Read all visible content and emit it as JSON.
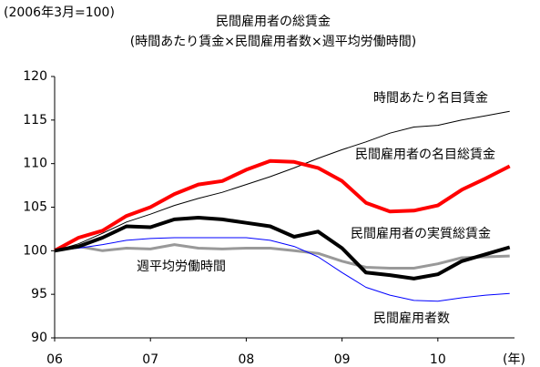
{
  "chart_data": {
    "type": "line",
    "note": "(2006年3月=100)",
    "title": "民間雇用者の総賃金",
    "subtitle": "(時間あたり賃金×民間雇用者数×週平均労働時間)",
    "x_unit": "(年)",
    "xlim": [
      2006,
      2010.8
    ],
    "xticks": [
      {
        "value": 2006,
        "label": "06"
      },
      {
        "value": 2007,
        "label": "07"
      },
      {
        "value": 2008,
        "label": "08"
      },
      {
        "value": 2009,
        "label": "09"
      },
      {
        "value": 2010,
        "label": "10"
      }
    ],
    "ylim": [
      90,
      120
    ],
    "yticks": [
      90,
      95,
      100,
      105,
      110,
      115,
      120
    ],
    "x": [
      2006,
      2006.25,
      2006.5,
      2006.75,
      2007,
      2007.25,
      2007.5,
      2007.75,
      2008,
      2008.25,
      2008.5,
      2008.75,
      2009,
      2009.25,
      2009.5,
      2009.75,
      2010,
      2010.25,
      2010.5,
      2010.75
    ],
    "series": [
      {
        "name": "時間あたり名目賃金",
        "color": "#000000",
        "values": [
          100,
          100.8,
          102,
          103.3,
          104.2,
          105.2,
          106,
          106.7,
          107.6,
          108.5,
          109.5,
          110.6,
          111.6,
          112.5,
          113.5,
          114.2,
          114.4,
          115,
          115.5,
          116
        ]
      },
      {
        "name": "民間雇用者の名目総賃金",
        "color": "#ff0000",
        "values": [
          100,
          101.5,
          102.3,
          104,
          105,
          106.5,
          107.6,
          108,
          109.3,
          110.3,
          110.2,
          109.5,
          108,
          105.5,
          104.5,
          104.6,
          105.2,
          107,
          108.3,
          109.7
        ]
      },
      {
        "name": "民間雇用者の実質総賃金",
        "color": "#000000",
        "values": [
          100,
          100.5,
          101.5,
          102.8,
          102.7,
          103.6,
          103.8,
          103.6,
          103.2,
          102.8,
          101.6,
          102.2,
          100.3,
          97.5,
          97.2,
          96.8,
          97.3,
          98.8,
          99.6,
          100.4
        ]
      },
      {
        "name": "週平均労働時間",
        "color": "#999999",
        "values": [
          100,
          100.5,
          100,
          100.3,
          100.2,
          100.7,
          100.3,
          100.2,
          100.3,
          100.3,
          100,
          99.7,
          98.8,
          98.1,
          98,
          98,
          98.5,
          99.2,
          99.3,
          99.4
        ]
      },
      {
        "name": "民間雇用者数",
        "color": "#0000ff",
        "values": [
          100,
          100.3,
          100.7,
          101.2,
          101.4,
          101.5,
          101.5,
          101.5,
          101.5,
          101.2,
          100.5,
          99.3,
          97.5,
          95.8,
          94.9,
          94.3,
          94.2,
          94.6,
          94.9,
          95.1
        ]
      }
    ]
  }
}
